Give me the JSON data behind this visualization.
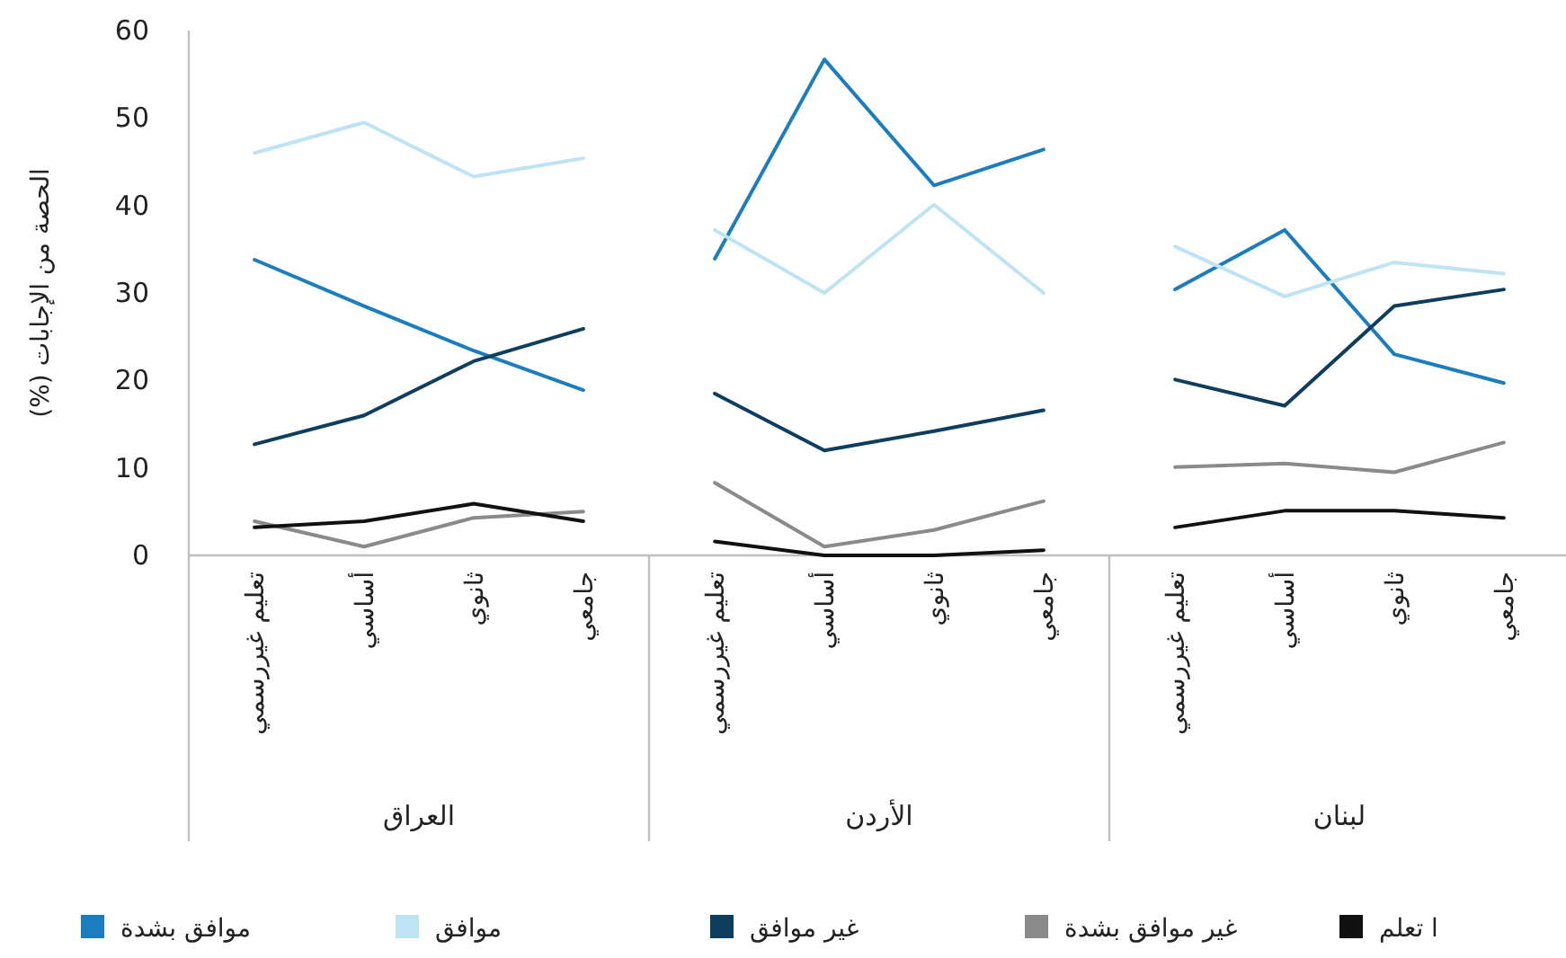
{
  "chart_data": [
    {
      "type": "line",
      "categories": [
        "تعليم غيررسمي",
        "أساسي",
        "ثانوي",
        "جامعي"
      ],
      "xlabel": "العراق",
      "ylabel": "الحصة من الإجابات (%)",
      "ylim": [
        0,
        60
      ],
      "yticks": [
        0,
        10,
        20,
        30,
        40,
        50,
        60
      ],
      "legend": "bottom",
      "series": [
        {
          "name": "موافق بشدة",
          "color": "#1a7dc0",
          "values": [
            33.8,
            28.5,
            23.4,
            18.9
          ]
        },
        {
          "name": "موافق",
          "color": "#bde3f5",
          "values": [
            46,
            49.5,
            43.3,
            45.4
          ]
        },
        {
          "name": "غير موافق",
          "color": "#0e3e5e",
          "values": [
            12.7,
            16,
            22.2,
            25.9
          ]
        },
        {
          "name": "غير موافق بشدة",
          "color": "#8a8a8a",
          "values": [
            3.9,
            1,
            4.3,
            5
          ]
        },
        {
          "name": "ا تعلم",
          "color": "#111111",
          "values": [
            3.2,
            3.9,
            5.9,
            3.9
          ]
        }
      ]
    },
    {
      "type": "line",
      "categories": [
        "تعليم غيررسمي",
        "أساسي",
        "ثانوي",
        "جامعي"
      ],
      "xlabel": "الأردن",
      "ylim": [
        0,
        60
      ],
      "tick_labels": "x",
      "series": [
        {
          "color": "#1a7dc0",
          "values": [
            33.9,
            56.7,
            42.3,
            46.4
          ]
        },
        {
          "color": "#bde3f5",
          "values": [
            37.2,
            30,
            40.1,
            30
          ]
        },
        {
          "color": "#0e3e5e",
          "values": [
            18.5,
            12,
            14.2,
            16.6
          ]
        },
        {
          "color": "#8a8a8a",
          "values": [
            8.3,
            1,
            2.9,
            6.2
          ]
        },
        {
          "color": "#111111",
          "values": [
            1.6,
            0,
            0,
            0.6
          ]
        }
      ]
    },
    {
      "type": "line",
      "categories": [
        "تعليم غيررسمي",
        "أساسي",
        "ثانوي",
        "جامعي"
      ],
      "xlabel": "لبنان",
      "ylim": [
        0,
        60
      ],
      "tick_labels": "x",
      "series": [
        {
          "color": "#1a7dc0",
          "values": [
            30.4,
            37.2,
            23,
            19.7
          ]
        },
        {
          "color": "#bde3f5",
          "values": [
            35.3,
            29.6,
            33.5,
            32.2
          ]
        },
        {
          "color": "#0e3e5e",
          "values": [
            20.1,
            17.1,
            28.5,
            30.4
          ]
        },
        {
          "color": "#8a8a8a",
          "values": [
            10.1,
            10.5,
            9.5,
            12.9
          ]
        },
        {
          "color": "#111111",
          "values": [
            3.2,
            5.1,
            5.1,
            4.3
          ]
        }
      ]
    }
  ]
}
